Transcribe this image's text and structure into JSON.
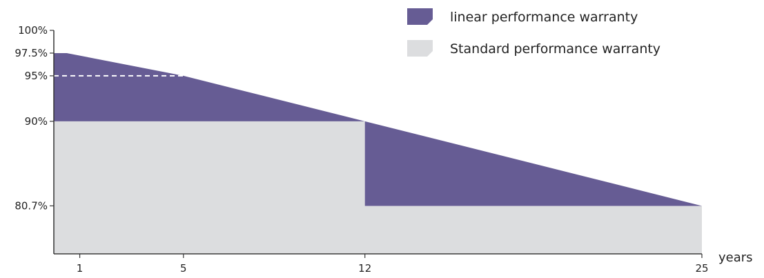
{
  "chart_data": {
    "type": "area",
    "title": "",
    "xlabel": "years",
    "ylabel": "",
    "xlim": [
      0,
      25
    ],
    "ylim": [
      75.5,
      100
    ],
    "x_ticks": [
      {
        "value": 1,
        "label": "1"
      },
      {
        "value": 5,
        "label": "5"
      },
      {
        "value": 12,
        "label": "12"
      },
      {
        "value": 25,
        "label": "25"
      }
    ],
    "y_ticks": [
      {
        "value": 100,
        "label": "100%"
      },
      {
        "value": 97.5,
        "label": "97.5%"
      },
      {
        "value": 95,
        "label": "95%"
      },
      {
        "value": 90,
        "label": "90%"
      },
      {
        "value": 80.7,
        "label": "80.7%"
      }
    ],
    "reference_line": {
      "y": 95,
      "x_range": [
        0,
        5
      ],
      "style": "dashed"
    },
    "grid": false,
    "legend_position": "top-right",
    "series": [
      {
        "name": "linear performance warranty",
        "color": "#665c94",
        "points": [
          {
            "x": 0,
            "y": 97.5
          },
          {
            "x": 0.5,
            "y": 97.5
          },
          {
            "x": 5,
            "y": 95
          },
          {
            "x": 12,
            "y": 90
          },
          {
            "x": 25,
            "y": 80.7
          }
        ]
      },
      {
        "name": "Standard performance warranty",
        "color": "#dcdddf",
        "points": [
          {
            "x": 0,
            "y": 90
          },
          {
            "x": 12,
            "y": 90
          },
          {
            "x": 12,
            "y": 80.7
          },
          {
            "x": 25,
            "y": 80.7
          }
        ]
      }
    ]
  }
}
